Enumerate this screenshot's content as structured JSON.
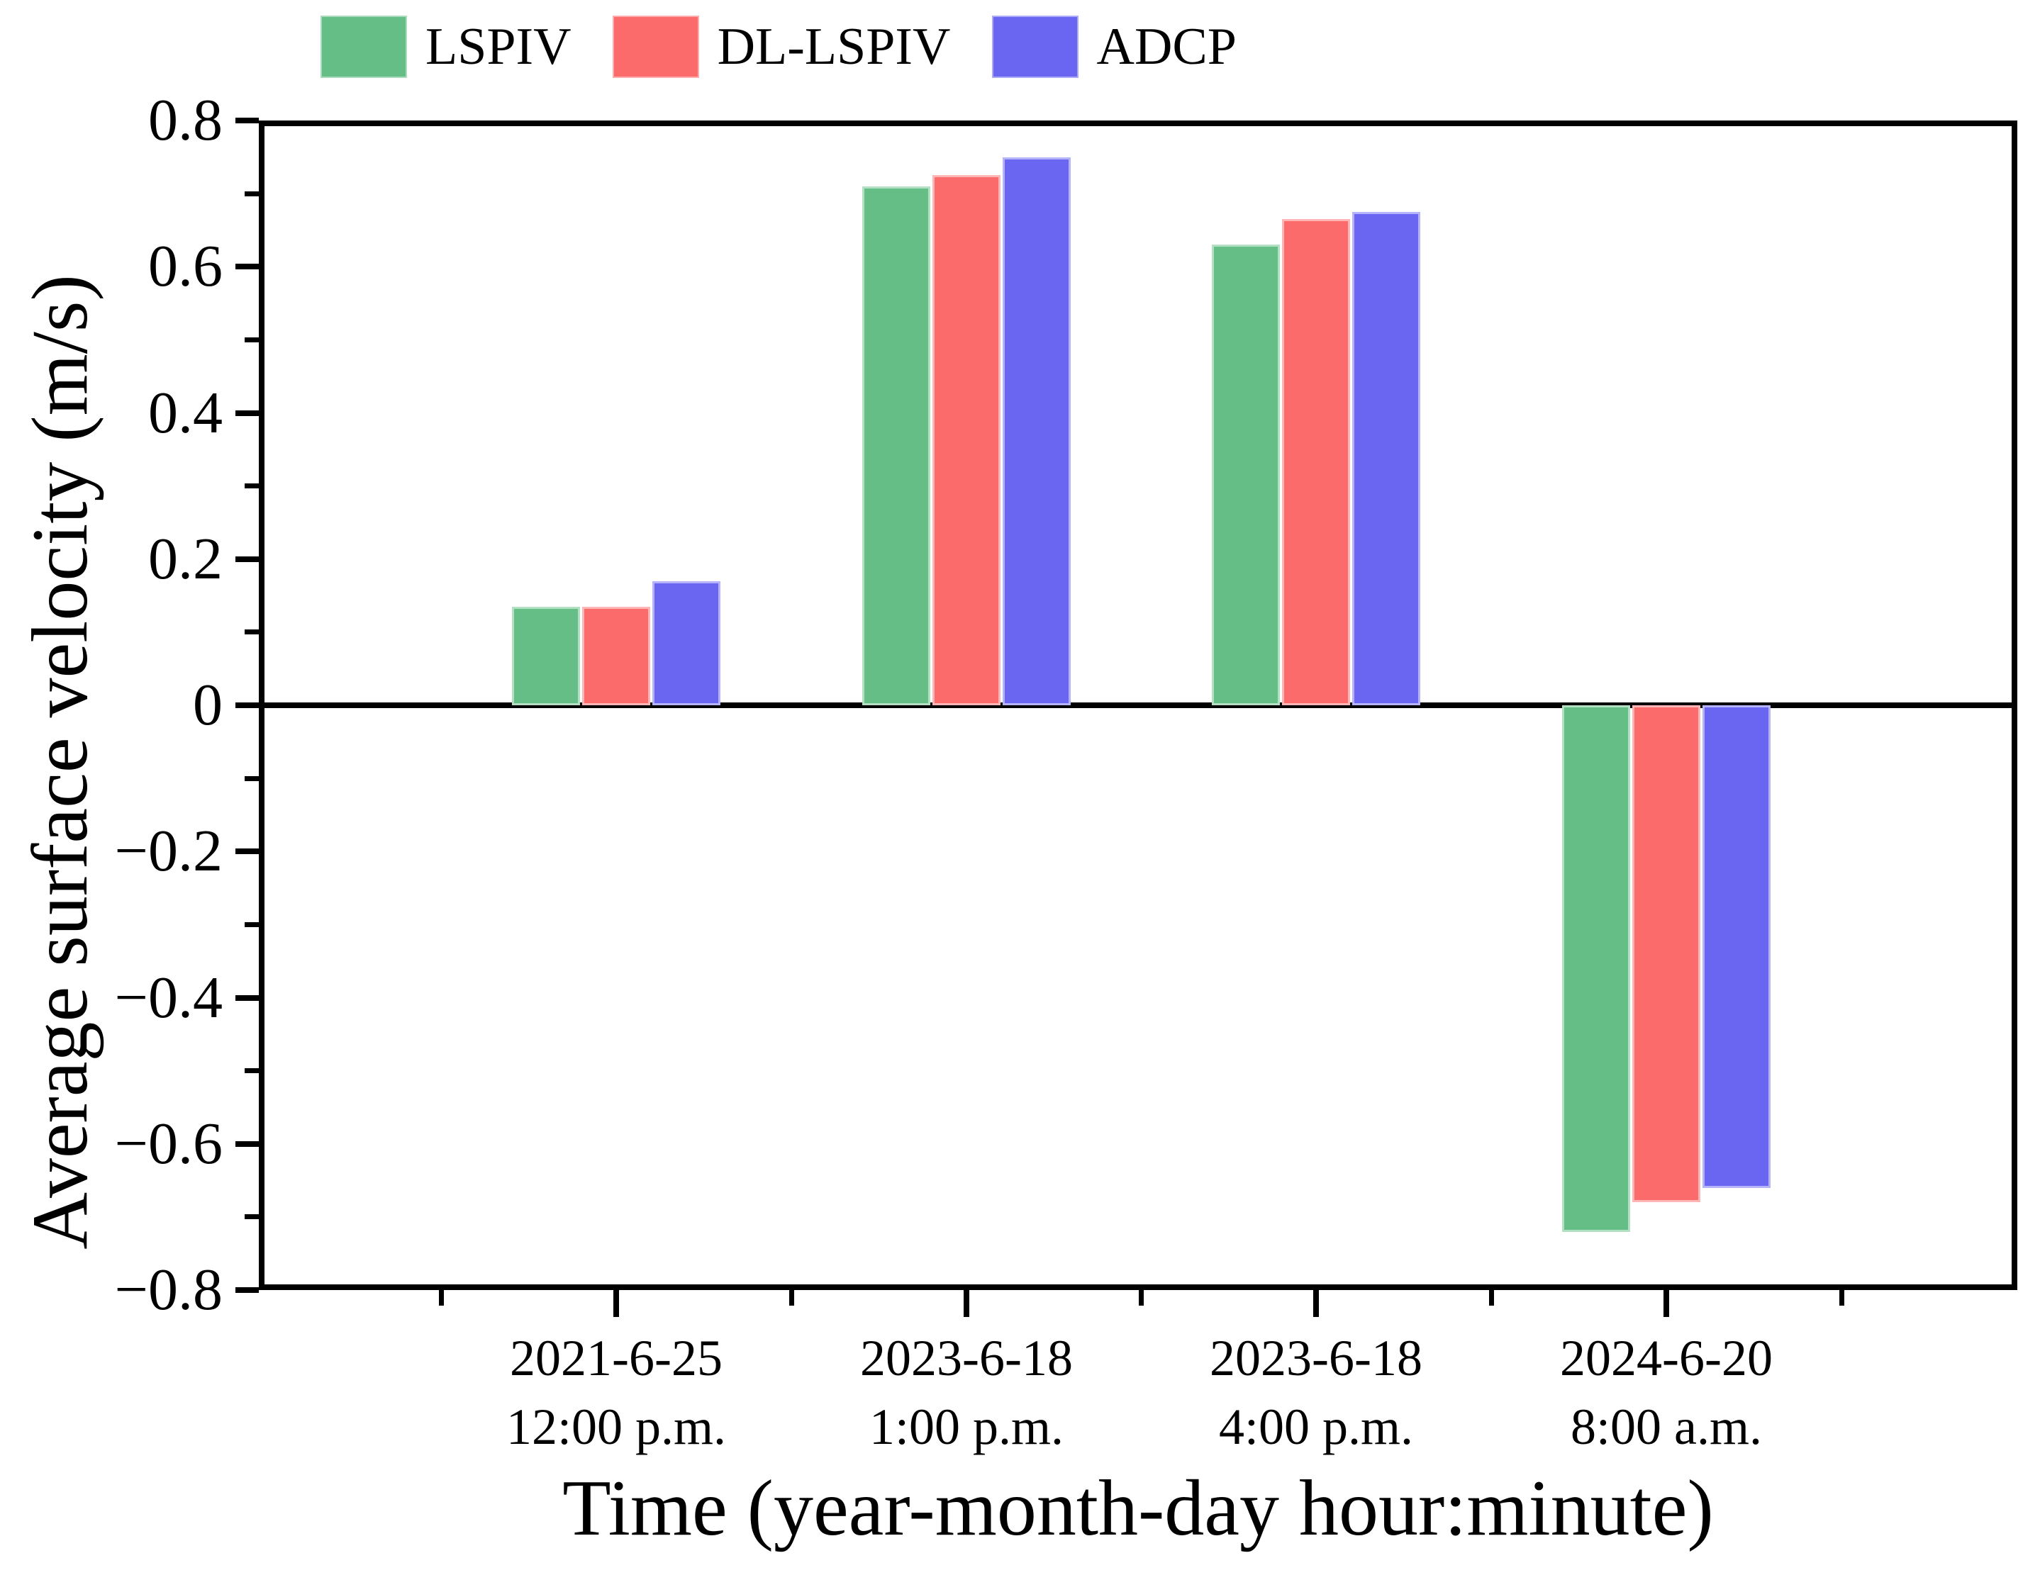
{
  "legend": {
    "items": [
      {
        "label": "LSPIV",
        "color": "#66BE87"
      },
      {
        "label": "DL-LSPIV",
        "color": "#FB6B6B"
      },
      {
        "label": "ADCP",
        "color": "#6B66F2"
      }
    ]
  },
  "axes": {
    "xlabel": "Time (year-month-day hour:minute)",
    "ylabel": "Average surface velocity (m/s)"
  },
  "chart_data": {
    "type": "bar",
    "title": "",
    "categories": [
      {
        "line1": "2021-6-25",
        "line2": "12:00 p.m."
      },
      {
        "line1": "2023-6-18",
        "line2": "1:00 p.m."
      },
      {
        "line1": "2023-6-18",
        "line2": "4:00 p.m."
      },
      {
        "line1": "2024-6-20",
        "line2": "8:00 a.m."
      }
    ],
    "series": [
      {
        "name": "LSPIV",
        "color": "#66BE87",
        "values": [
          0.135,
          0.71,
          0.63,
          -0.72
        ]
      },
      {
        "name": "DL-LSPIV",
        "color": "#FB6B6B",
        "values": [
          0.135,
          0.725,
          0.665,
          -0.68
        ]
      },
      {
        "name": "ADCP",
        "color": "#6B66F2",
        "values": [
          0.17,
          0.75,
          0.675,
          -0.66
        ]
      }
    ],
    "xlabel": "Time (year-month-day hour:minute)",
    "ylabel": "Average surface velocity (m/s)",
    "ylim": [
      -0.8,
      0.8
    ],
    "ytick_values": [
      0.8,
      0.6,
      0.4,
      0.2,
      0,
      -0.2,
      -0.4,
      -0.6,
      -0.8
    ],
    "ytick_labels": [
      "0.8",
      "0.6",
      "0.4",
      "0.2",
      "0",
      "−0.2",
      "−0.4",
      "−0.6",
      "−0.8"
    ],
    "yminor_values": [
      0.7,
      0.5,
      0.3,
      0.1,
      -0.1,
      -0.3,
      -0.5,
      -0.7
    ],
    "grid": false,
    "legend_position": "top-left",
    "zero_line": true
  }
}
